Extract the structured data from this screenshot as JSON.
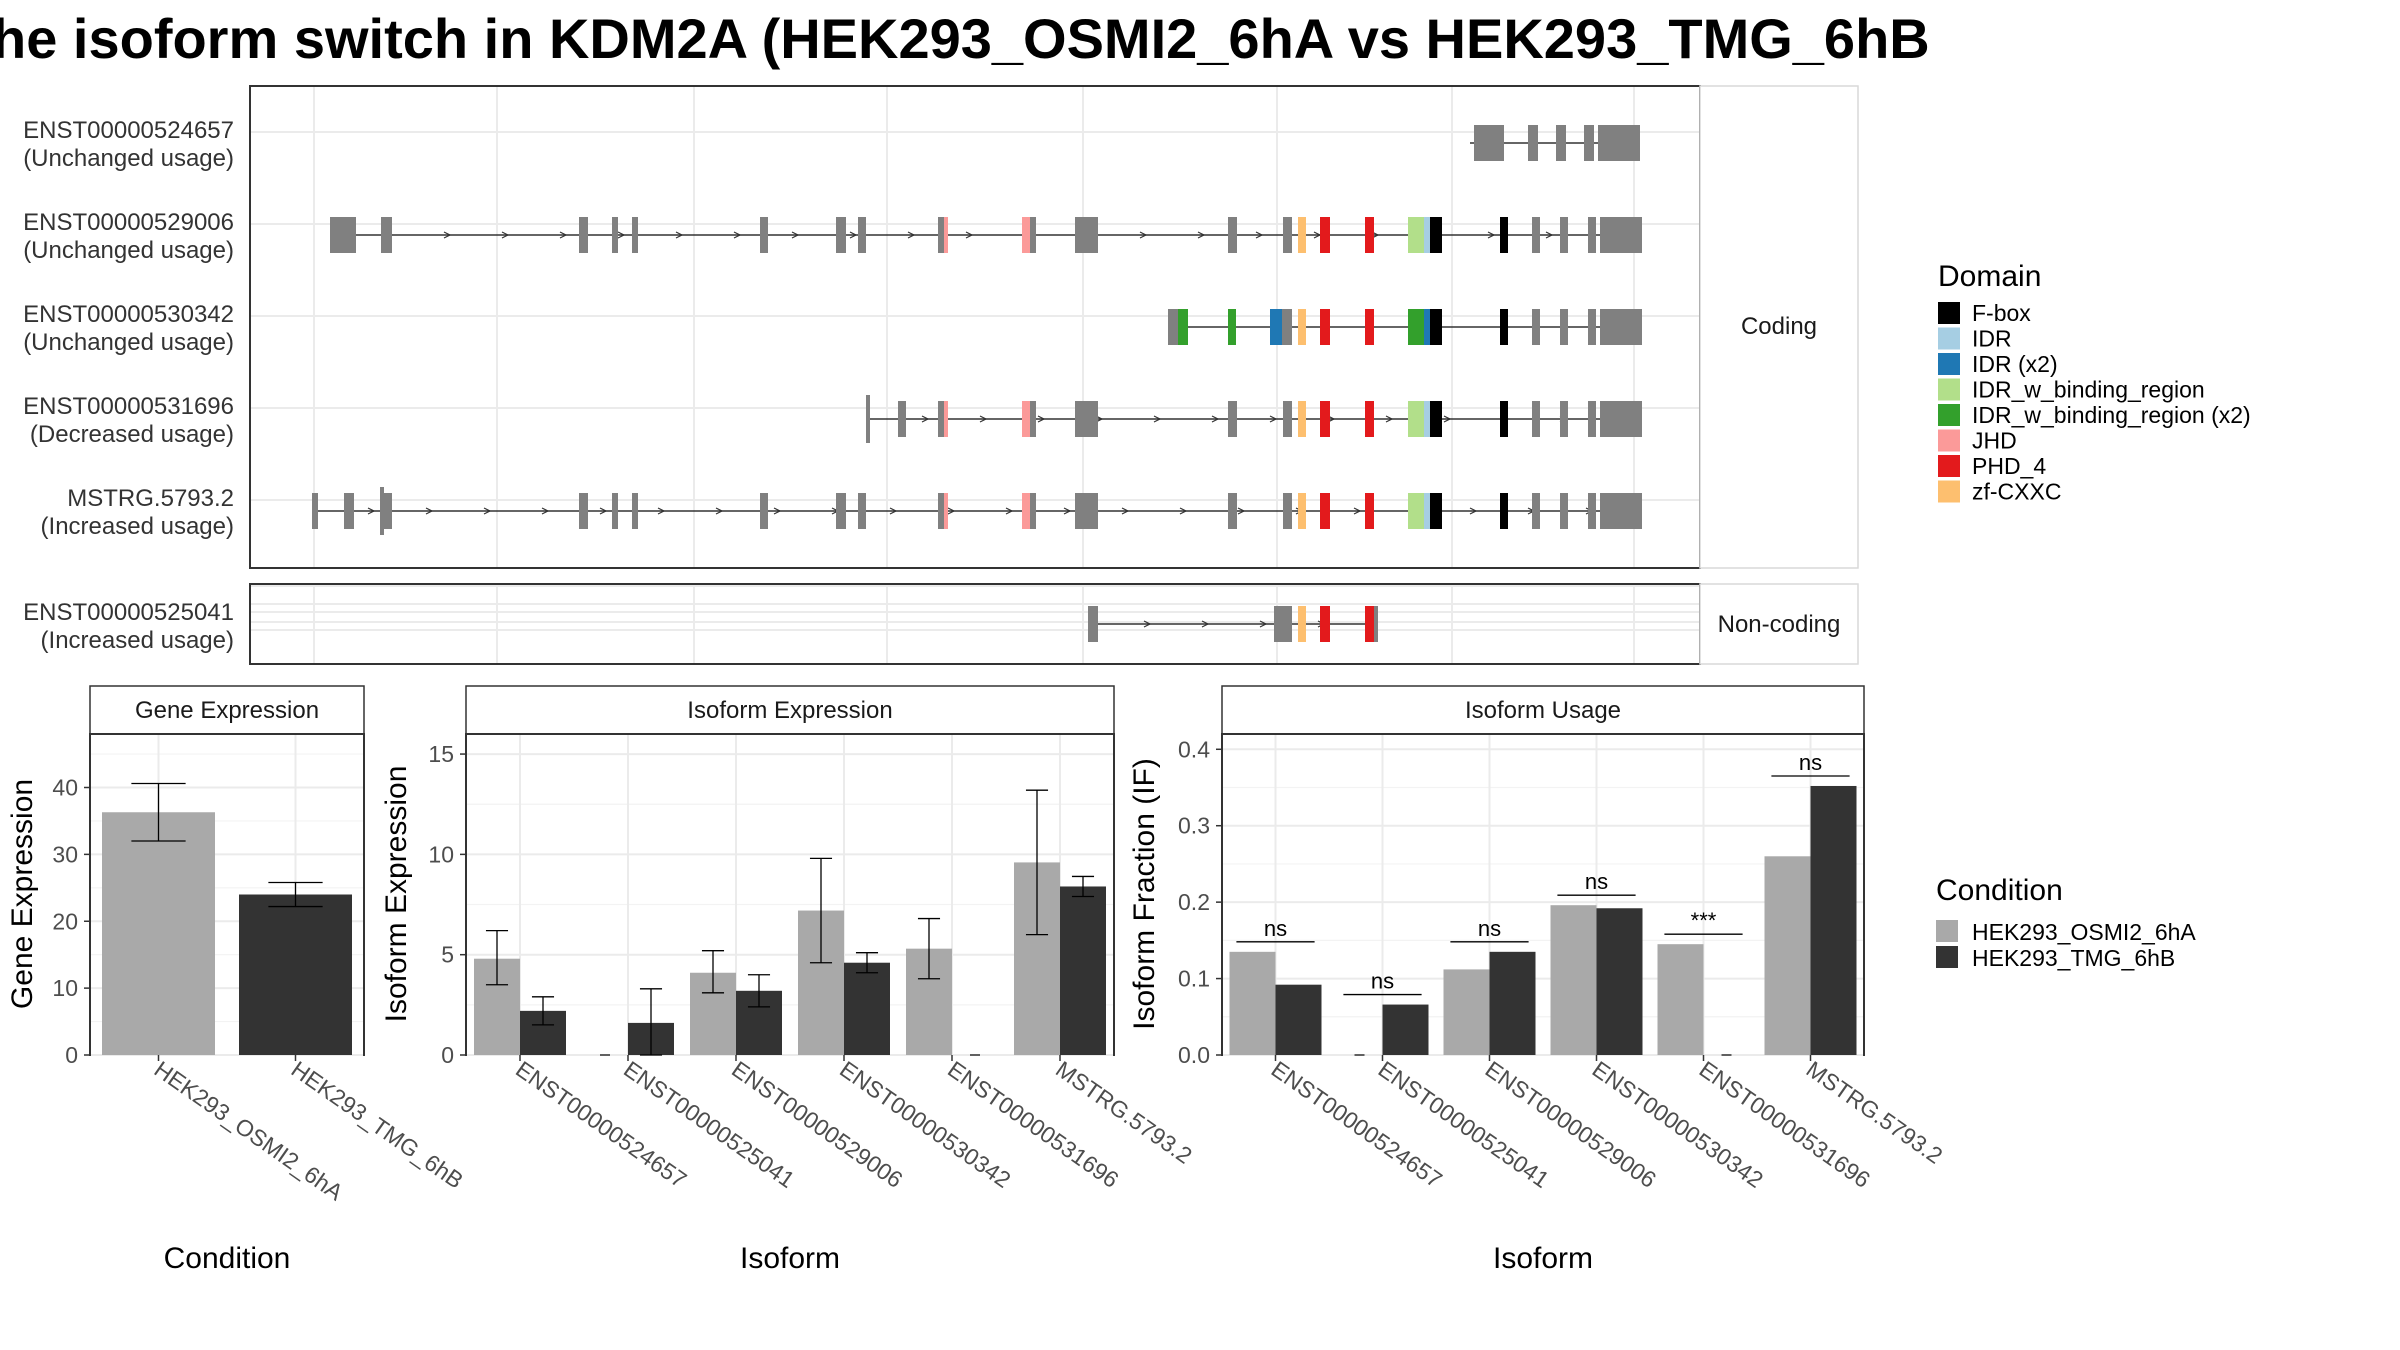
{
  "title": "he isoform switch in KDM2A (HEK293_OSMI2_6hA vs HEK293_TMG_6hB",
  "colors": {
    "exon": "#808080",
    "cond_a": "#a9a9a9",
    "cond_b": "#333333"
  },
  "chart_data": [
    {
      "type": "gene-structure",
      "facets": [
        "Coding",
        "Non-coding"
      ],
      "legend_title": "Domain",
      "domains": [
        {
          "name": "F-box",
          "color": "#000000"
        },
        {
          "name": "IDR",
          "color": "#a6cee3"
        },
        {
          "name": "IDR (x2)",
          "color": "#1f78b4"
        },
        {
          "name": "IDR_w_binding_region",
          "color": "#b2df8a"
        },
        {
          "name": "IDR_w_binding_region (x2)",
          "color": "#33a02c"
        },
        {
          "name": "JHD",
          "color": "#fb9a99"
        },
        {
          "name": "PHD_4",
          "color": "#e31a1c"
        },
        {
          "name": "zf-CXXC",
          "color": "#fdbf6f"
        }
      ],
      "isoforms": [
        {
          "id": "ENST00000524657",
          "note": "(Unchanged usage)",
          "facet": "Coding"
        },
        {
          "id": "ENST00000529006",
          "note": "(Unchanged usage)",
          "facet": "Coding"
        },
        {
          "id": "ENST00000530342",
          "note": "(Unchanged usage)",
          "facet": "Coding"
        },
        {
          "id": "ENST00000531696",
          "note": "(Decreased usage)",
          "facet": "Coding"
        },
        {
          "id": "MSTRG.5793.2",
          "note": "(Increased usage)",
          "facet": "Coding"
        },
        {
          "id": "ENST00000525041",
          "note": "(Increased usage)",
          "facet": "Non-coding"
        }
      ]
    },
    {
      "type": "bar",
      "title": "Gene Expression",
      "xlabel": "Condition",
      "ylabel": "Gene Expression",
      "ylim": [
        0,
        48
      ],
      "yticks": [
        0,
        10,
        20,
        30,
        40
      ],
      "categories": [
        "HEK293_OSMI2_6hA",
        "HEK293_TMG_6hB"
      ],
      "values": [
        36.3,
        24.0
      ],
      "errors": [
        [
          32.0,
          40.6
        ],
        [
          22.2,
          25.8
        ]
      ]
    },
    {
      "type": "bar",
      "title": "Isoform Expression",
      "xlabel": "Isoform",
      "ylabel": "Isoform Expression",
      "ylim": [
        0,
        16
      ],
      "yticks": [
        0,
        5,
        10,
        15
      ],
      "categories": [
        "ENST00000524657",
        "ENST00000525041",
        "ENST00000529006",
        "ENST00000530342",
        "ENST00000531696",
        "MSTRG.5793.2"
      ],
      "series": [
        {
          "name": "HEK293_OSMI2_6hA",
          "values": [
            4.8,
            0.0,
            4.1,
            7.2,
            5.3,
            9.6
          ],
          "errors": [
            [
              3.5,
              6.2
            ],
            null,
            [
              3.1,
              5.2
            ],
            [
              4.6,
              9.8
            ],
            [
              3.8,
              6.8
            ],
            [
              6.0,
              13.2
            ]
          ]
        },
        {
          "name": "HEK293_TMG_6hB",
          "values": [
            2.2,
            1.6,
            3.2,
            4.6,
            0.0,
            8.4
          ],
          "errors": [
            [
              1.5,
              2.9
            ],
            [
              0.0,
              3.3
            ],
            [
              2.4,
              4.0
            ],
            [
              4.1,
              5.1
            ],
            null,
            [
              7.9,
              8.9
            ]
          ]
        }
      ]
    },
    {
      "type": "bar",
      "title": "Isoform Usage",
      "xlabel": "Isoform",
      "ylabel": "Isoform Fraction (IF)",
      "ylim": [
        0,
        0.42
      ],
      "yticks": [
        "0.0",
        "0.1",
        "0.2",
        "0.3",
        "0.4"
      ],
      "categories": [
        "ENST00000524657",
        "ENST00000525041",
        "ENST00000529006",
        "ENST00000530342",
        "ENST00000531696",
        "MSTRG.5793.2"
      ],
      "series": [
        {
          "name": "HEK293_OSMI2_6hA",
          "values": [
            0.135,
            0.0,
            0.112,
            0.196,
            0.145,
            0.26
          ]
        },
        {
          "name": "HEK293_TMG_6hB",
          "values": [
            0.092,
            0.066,
            0.135,
            0.192,
            0.0,
            0.352
          ]
        }
      ],
      "significance": [
        "ns",
        "ns",
        "ns",
        "ns",
        "***",
        "ns"
      ]
    }
  ],
  "condition_legend": {
    "title": "Condition",
    "items": [
      "HEK293_OSMI2_6hA",
      "HEK293_TMG_6hB"
    ]
  }
}
